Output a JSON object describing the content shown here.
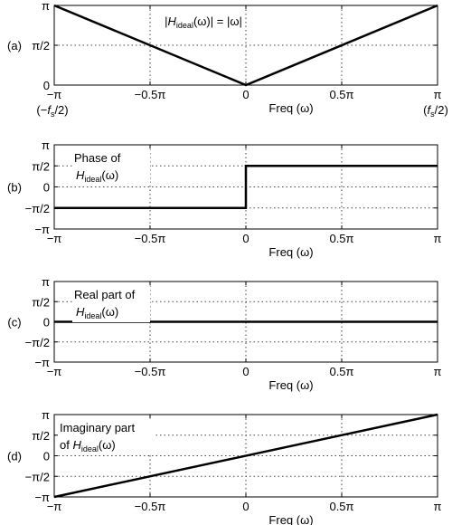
{
  "chart_data": [
    {
      "type": "line",
      "panel_label": "(a)",
      "annotation_parts": [
        "|",
        "H",
        "ideal",
        "(ω)| = |ω|"
      ],
      "x_ticks": [
        "−π",
        "−0.5π",
        "0",
        "0.5π",
        "π"
      ],
      "y_ticks": [
        "0",
        "π/2",
        "π"
      ],
      "xlim": [
        -1,
        1
      ],
      "ylim": [
        0,
        1
      ],
      "x_extra_left_parts": [
        "(−",
        "f",
        "s",
        "/2)"
      ],
      "x_extra_right_parts": [
        "(",
        "f",
        "s",
        "/2)"
      ],
      "xlabel": "Freq (ω)",
      "grid": true,
      "series": [
        {
          "x": [
            -1,
            0,
            1
          ],
          "y": [
            1,
            0,
            1
          ]
        }
      ]
    },
    {
      "type": "line",
      "panel_label": "(b)",
      "annotation_line1": "Phase of",
      "annotation_line2_parts": [
        "H",
        "ideal",
        "(ω)"
      ],
      "x_ticks": [
        "−π",
        "−0.5π",
        "0",
        "0.5π",
        "π"
      ],
      "y_ticks": [
        "−π",
        "−π/2",
        "0",
        "π/2",
        "π"
      ],
      "xlim": [
        -1,
        1
      ],
      "ylim": [
        -1,
        1
      ],
      "xlabel": "Freq (ω)",
      "grid": true,
      "series": [
        {
          "x": [
            -1,
            0,
            0,
            1
          ],
          "y": [
            -0.5,
            -0.5,
            0.5,
            0.5
          ]
        }
      ]
    },
    {
      "type": "line",
      "panel_label": "(c)",
      "annotation_line1": "Real part of",
      "annotation_line2_parts": [
        "H",
        "ideal",
        "(ω)"
      ],
      "x_ticks": [
        "−π",
        "−0.5π",
        "0",
        "0.5π",
        "π"
      ],
      "y_ticks": [
        "−π",
        "−π/2",
        "0",
        "π/2",
        "π"
      ],
      "xlim": [
        -1,
        1
      ],
      "ylim": [
        -1,
        1
      ],
      "xlabel": "Freq (ω)",
      "grid": true,
      "series": [
        {
          "x": [
            -1,
            1
          ],
          "y": [
            0,
            0
          ]
        }
      ]
    },
    {
      "type": "line",
      "panel_label": "(d)",
      "annotation_line1": "Imaginary part",
      "annotation_line2_parts": [
        "of ",
        "H",
        "ideal",
        "(ω)"
      ],
      "x_ticks": [
        "−π",
        "−0.5π",
        "0",
        "0.5π",
        "π"
      ],
      "y_ticks": [
        "−π",
        "−π/2",
        "0",
        "π/2",
        "π"
      ],
      "xlim": [
        -1,
        1
      ],
      "ylim": [
        -1,
        1
      ],
      "xlabel": "Freq (ω)",
      "grid": true,
      "series": [
        {
          "x": [
            -1,
            1
          ],
          "y": [
            -1,
            1
          ]
        }
      ]
    }
  ]
}
